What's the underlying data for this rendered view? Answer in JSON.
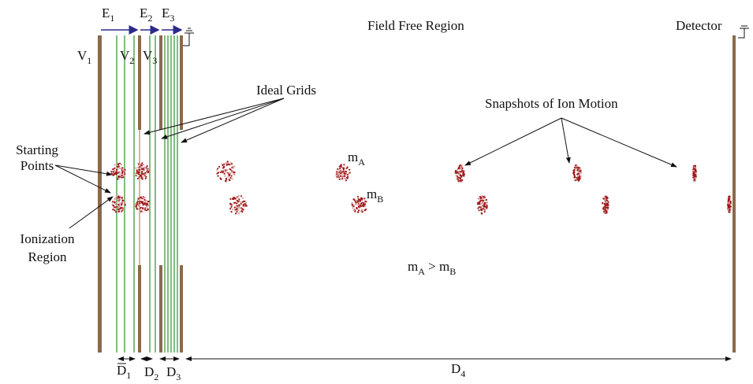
{
  "labels": {
    "fields": [
      {
        "base": "E",
        "sub": "1"
      },
      {
        "base": "E",
        "sub": "2"
      },
      {
        "base": "E",
        "sub": "3"
      }
    ],
    "voltages": [
      {
        "base": "V",
        "sub": "1"
      },
      {
        "base": "V",
        "sub": "2"
      },
      {
        "base": "V",
        "sub": "3"
      }
    ],
    "distances": [
      {
        "base": "D",
        "sub": "1"
      },
      {
        "base": "D",
        "sub": "2"
      },
      {
        "base": "D",
        "sub": "3"
      },
      {
        "base": "D",
        "sub": "4"
      }
    ],
    "field_free_region": "Field Free Region",
    "detector": "Detector",
    "ideal_grids": "Ideal Grids",
    "snapshots": "Snapshots of Ion Motion",
    "starting_points": [
      "Starting",
      "Points"
    ],
    "ionization_region": [
      "Ionization",
      "Region"
    ],
    "mass_a": {
      "base": "m",
      "sub": "A"
    },
    "mass_b": {
      "base": "m",
      "sub": "B"
    },
    "mass_relation": [
      {
        "base": "m",
        "sub": "A"
      },
      {
        "base": " > m",
        "sub": "B"
      }
    ]
  }
}
